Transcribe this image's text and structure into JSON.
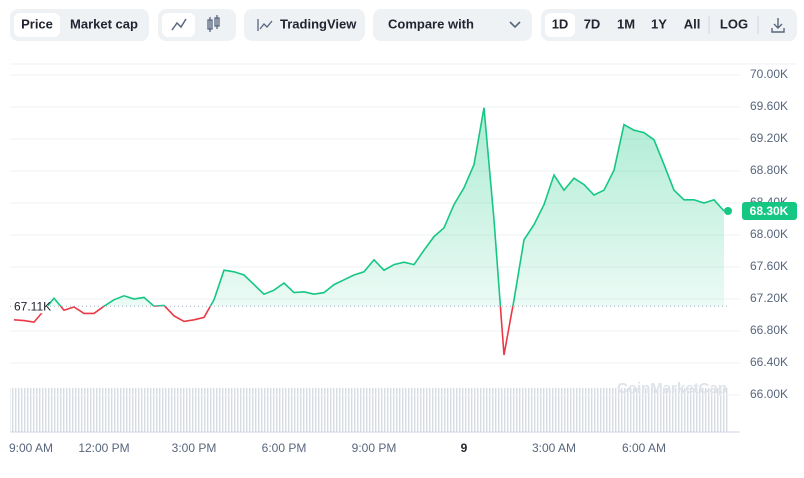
{
  "toolbar": {
    "view_tabs": [
      "Price",
      "Market cap"
    ],
    "chart_style_tabs": [
      "line",
      "candles"
    ],
    "tradingview": "TradingView",
    "compare": "Compare with",
    "ranges": [
      "1D",
      "7D",
      "1M",
      "1Y",
      "All"
    ],
    "log": "LOG",
    "watermark": "CoinMarketCap"
  },
  "chart_data": {
    "type": "line",
    "categories": [
      "9:00 AM",
      null,
      null,
      null,
      null,
      null,
      null,
      null,
      null,
      "12:00 PM",
      null,
      null,
      null,
      null,
      null,
      null,
      null,
      null,
      "3:00 PM",
      null,
      null,
      null,
      null,
      null,
      null,
      null,
      null,
      "6:00 PM",
      null,
      null,
      null,
      null,
      null,
      null,
      null,
      null,
      "9:00 PM",
      null,
      null,
      null,
      null,
      null,
      null,
      null,
      null,
      "9",
      null,
      null,
      null,
      null,
      null,
      null,
      null,
      null,
      "3:00 AM",
      null,
      null,
      null,
      null,
      null,
      null,
      null,
      null,
      "6:00 AM",
      null,
      null,
      null,
      null,
      null,
      null,
      null,
      null
    ],
    "values": [
      66940,
      66930,
      66910,
      67060,
      67210,
      67060,
      67100,
      67020,
      67020,
      67110,
      67190,
      67240,
      67200,
      67220,
      67110,
      67120,
      66990,
      66920,
      66940,
      66970,
      67190,
      67560,
      67540,
      67500,
      67380,
      67260,
      67310,
      67400,
      67280,
      67290,
      67260,
      67280,
      67380,
      67440,
      67500,
      67540,
      67690,
      67560,
      67630,
      67660,
      67630,
      67810,
      67980,
      68090,
      68380,
      68590,
      68880,
      69590,
      68190,
      66500,
      67190,
      67940,
      68130,
      68380,
      68750,
      68560,
      68710,
      68630,
      68500,
      68560,
      68810,
      69380,
      69310,
      69280,
      69190,
      68880,
      68560,
      68440,
      68440,
      68400,
      68440,
      68300
    ],
    "reference": {
      "value": 67110,
      "label": "67.11K"
    },
    "last_price": {
      "value": 68300,
      "label": "68.30K"
    },
    "color_up": "#16c784",
    "color_down": "#ea3943",
    "ylim": [
      66000,
      70000
    ],
    "yticks": [
      {
        "value": 66000,
        "label": "66.00K"
      },
      {
        "value": 66400,
        "label": "66.40K"
      },
      {
        "value": 66800,
        "label": "66.80K"
      },
      {
        "value": 67200,
        "label": "67.20K"
      },
      {
        "value": 67600,
        "label": "67.60K"
      },
      {
        "value": 68000,
        "label": "68.00K"
      },
      {
        "value": 68400,
        "label": "68.40K"
      },
      {
        "value": 68800,
        "label": "68.80K"
      },
      {
        "value": 69200,
        "label": "69.20K"
      },
      {
        "value": 69600,
        "label": "69.60K"
      },
      {
        "value": 70000,
        "label": "70.00K"
      }
    ],
    "grid": true
  }
}
